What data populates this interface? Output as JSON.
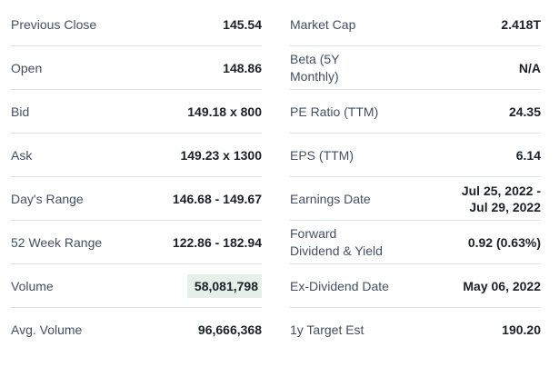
{
  "quote_summary": {
    "left_rows": [
      {
        "label": "Previous Close",
        "value": "145.54"
      },
      {
        "label": "Open",
        "value": "148.86"
      },
      {
        "label": "Bid",
        "value": "149.18 x 800"
      },
      {
        "label": "Ask",
        "value": "149.23 x 1300"
      },
      {
        "label": "Day's Range",
        "value": "146.68 - 149.67"
      },
      {
        "label": "52 Week Range",
        "value": "122.86 - 182.94"
      },
      {
        "label": "Volume",
        "value": "58,081,798",
        "highlighted": true
      },
      {
        "label": "Avg. Volume",
        "value": "96,666,368"
      }
    ],
    "right_rows": [
      {
        "label": "Market Cap",
        "value": "2.418T"
      },
      {
        "label": "Beta (5Y Monthly)",
        "label_lines": [
          "Beta (5Y",
          "Monthly)"
        ],
        "value": "N/A"
      },
      {
        "label": "PE Ratio (TTM)",
        "value": "24.35"
      },
      {
        "label": "EPS (TTM)",
        "value": "6.14"
      },
      {
        "label": "Earnings Date",
        "value": "Jul 25, 2022 - Jul 29, 2022",
        "value_lines": [
          "Jul 25, 2022 -",
          "Jul 29, 2022"
        ]
      },
      {
        "label": "Forward Dividend & Yield",
        "label_lines": [
          "Forward",
          "Dividend & Yield"
        ],
        "value": "0.92 (0.63%)"
      },
      {
        "label": "Ex-Dividend Date",
        "value": "May 06, 2022"
      },
      {
        "label": "1y Target Est",
        "value": "190.20"
      }
    ],
    "colors": {
      "label_text": "#444f63",
      "value_text": "#1b2127",
      "divider": "#e0e3e6",
      "volume_highlight": "#e5f1e8",
      "background": "#ffffff"
    }
  }
}
